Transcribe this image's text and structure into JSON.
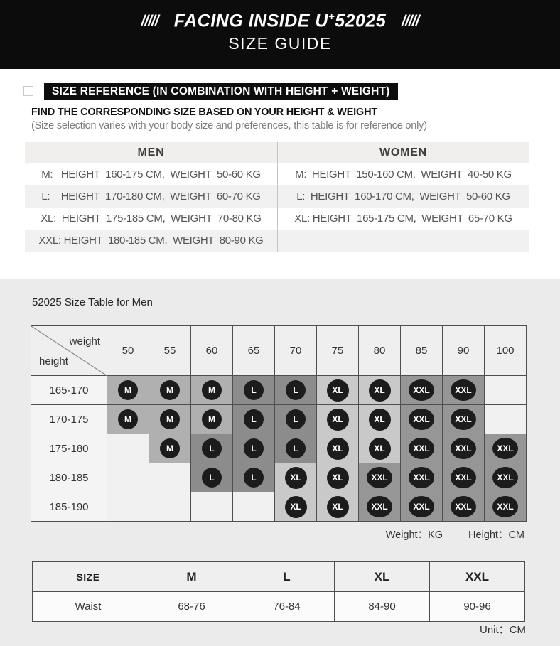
{
  "header": {
    "slashes_left": "/////",
    "slashes_right": "/////",
    "title_main": "FACING INSIDE U",
    "title_sup": "+",
    "title_num": "52025",
    "subtitle": "SIZE GUIDE"
  },
  "reference": {
    "bar_title": "SIZE REFERENCE (IN COMBINATION WITH HEIGHT + WEIGHT)",
    "headline": "FIND THE CORRESPONDING SIZE BASED ON YOUR HEIGHT & WEIGHT",
    "note": "(Size selection varies with your body size and preferences, this table is for reference only)"
  },
  "size_reference_table": {
    "men_title": "MEN",
    "women_title": "WOMEN",
    "bands": [
      {
        "men": "M:   HEIGHT  160-175 CM,  WEIGHT  50-60 KG",
        "women": "M:  HEIGHT  150-160 CM,  WEIGHT  40-50 KG"
      },
      {
        "men": "L:    HEIGHT  170-180 CM,  WEIGHT  60-70 KG",
        "women": "L:  HEIGHT  160-170 CM,  WEIGHT  50-60 KG"
      },
      {
        "men": "XL:  HEIGHT  175-185 CM,  WEIGHT  70-80 KG",
        "women": "XL: HEIGHT  165-175 CM,  WEIGHT  65-70 KG"
      },
      {
        "men": "XXL: HEIGHT  180-185 CM,  WEIGHT  80-90 KG",
        "women": ""
      }
    ]
  },
  "size_matrix": {
    "title": "52025 Size Table for Men",
    "corner_top": "weight",
    "corner_bottom": "height",
    "weights": [
      "50",
      "55",
      "60",
      "65",
      "70",
      "75",
      "80",
      "85",
      "90",
      "100"
    ],
    "rows": [
      {
        "height": "165-170",
        "cells": [
          "M",
          "M",
          "M",
          "L",
          "L",
          "XL",
          "XL",
          "XXL",
          "XXL",
          ""
        ]
      },
      {
        "height": "170-175",
        "cells": [
          "M",
          "M",
          "M",
          "L",
          "L",
          "XL",
          "XL",
          "XXL",
          "XXL",
          ""
        ]
      },
      {
        "height": "175-180",
        "cells": [
          "",
          "M",
          "L",
          "L",
          "L",
          "XL",
          "XL",
          "XXL",
          "XXL",
          "XXL"
        ]
      },
      {
        "height": "180-185",
        "cells": [
          "",
          "",
          "L",
          "L",
          "XL",
          "XL",
          "XXL",
          "XXL",
          "XXL",
          "XXL"
        ]
      },
      {
        "height": "185-190",
        "cells": [
          "",
          "",
          "",
          "",
          "XL",
          "XL",
          "XXL",
          "XXL",
          "XXL",
          "XXL"
        ]
      }
    ],
    "legend_weight": "Weight：KG",
    "legend_height": "Height：CM"
  },
  "waist_table": {
    "headers": [
      "SIZE",
      "M",
      "L",
      "XL",
      "XXL"
    ],
    "row_label": "Waist",
    "values": [
      "68-76",
      "76-84",
      "84-90",
      "90-96"
    ],
    "unit_note": "Unit：CM"
  },
  "colors": {
    "header_bg": "#0c0c0c",
    "bar_bg": "#0d0d0d",
    "panel_bg": "#ebebeb",
    "band_alt": "#f1f1f1",
    "table_head_bg": "#f1efed",
    "grid_border": "#4f4f4f",
    "cell_m": "#b0b0b0",
    "cell_l": "#8c8c8c",
    "cell_xl": "#c9c9c9",
    "cell_xxl": "#969696",
    "cell_empty": "#f1f1f1",
    "badge_bg": "#1c1c1c"
  }
}
